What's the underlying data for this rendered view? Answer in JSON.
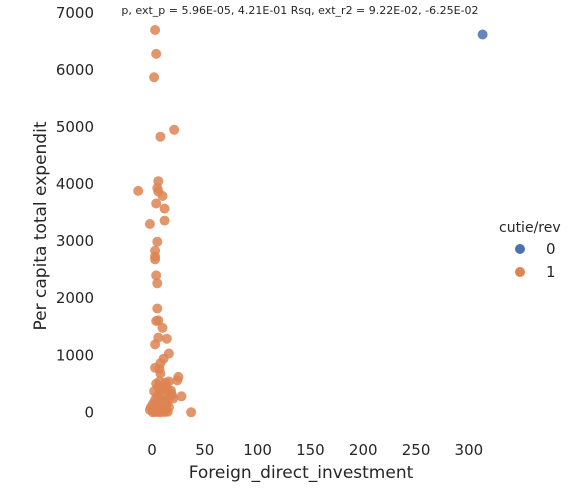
{
  "chart_data": {
    "type": "scatter",
    "title": "p, ext_p = 5.96E-05, 4.21E-01 Rsq, ext_r2 = 9.22E-02, -6.25E-02",
    "xlabel": "Foreign_direct_investment",
    "ylabel": "Per capita total expendit",
    "xlim": [
      -35,
      320
    ],
    "ylim": [
      -450,
      7050
    ],
    "x_ticks": [
      0,
      50,
      100,
      150,
      200,
      250,
      300
    ],
    "y_ticks": [
      0,
      1000,
      2000,
      3000,
      4000,
      5000,
      6000,
      7000
    ],
    "x_tick_labels": [
      "0",
      "50",
      "100",
      "150",
      "200",
      "250",
      "300"
    ],
    "y_tick_labels": [
      "0",
      "1000",
      "2000",
      "3000",
      "4000",
      "5000",
      "6000",
      "7000"
    ],
    "grid": false,
    "legend": {
      "title": "cutie/rev",
      "placement": "right",
      "entries": [
        "0",
        "1"
      ]
    },
    "colors": {
      "0": "#4c72b0",
      "1": "#dd8452"
    },
    "series": [
      {
        "name": "0",
        "points": [
          [
            313,
            6620
          ]
        ]
      },
      {
        "name": "1",
        "points": [
          [
            3,
            6700
          ],
          [
            4,
            6280
          ],
          [
            2,
            5870
          ],
          [
            21,
            4950
          ],
          [
            8,
            4830
          ],
          [
            6,
            4050
          ],
          [
            -13,
            3880
          ],
          [
            5,
            3930
          ],
          [
            6,
            3870
          ],
          [
            10,
            3790
          ],
          [
            4,
            3660
          ],
          [
            12,
            3570
          ],
          [
            12,
            3360
          ],
          [
            -2,
            3300
          ],
          [
            5,
            2990
          ],
          [
            3,
            2830
          ],
          [
            3,
            2730
          ],
          [
            3,
            2680
          ],
          [
            4,
            2400
          ],
          [
            5,
            2260
          ],
          [
            5,
            1820
          ],
          [
            4,
            1600
          ],
          [
            6,
            1610
          ],
          [
            10,
            1480
          ],
          [
            6,
            1310
          ],
          [
            14,
            1290
          ],
          [
            3,
            1190
          ],
          [
            16,
            1030
          ],
          [
            11,
            940
          ],
          [
            8,
            860
          ],
          [
            3,
            780
          ],
          [
            7,
            760
          ],
          [
            8,
            680
          ],
          [
            25,
            620
          ],
          [
            24,
            560
          ],
          [
            4,
            500
          ],
          [
            7,
            540
          ],
          [
            13,
            520
          ],
          [
            16,
            540
          ],
          [
            6,
            440
          ],
          [
            9,
            410
          ],
          [
            11,
            460
          ],
          [
            14,
            400
          ],
          [
            18,
            380
          ],
          [
            2,
            370
          ],
          [
            28,
            280
          ],
          [
            19,
            300
          ],
          [
            16,
            260
          ],
          [
            7,
            320
          ],
          [
            10,
            300
          ],
          [
            5,
            280
          ],
          [
            3,
            220
          ],
          [
            13,
            200
          ],
          [
            9,
            180
          ],
          [
            14,
            150
          ],
          [
            6,
            140
          ],
          [
            2,
            120
          ],
          [
            11,
            110
          ],
          [
            16,
            90
          ],
          [
            4,
            80
          ],
          [
            8,
            60
          ],
          [
            0,
            60
          ],
          [
            -2,
            40
          ],
          [
            13,
            40
          ],
          [
            6,
            20
          ],
          [
            10,
            30
          ],
          [
            3,
            10
          ],
          [
            15,
            10
          ],
          [
            1,
            0
          ],
          [
            8,
            0
          ],
          [
            37,
            0
          ],
          [
            12,
            5
          ],
          [
            5,
            5
          ],
          [
            18,
            330
          ],
          [
            20,
            240
          ],
          [
            1,
            150
          ],
          [
            -1,
            90
          ]
        ]
      }
    ]
  }
}
